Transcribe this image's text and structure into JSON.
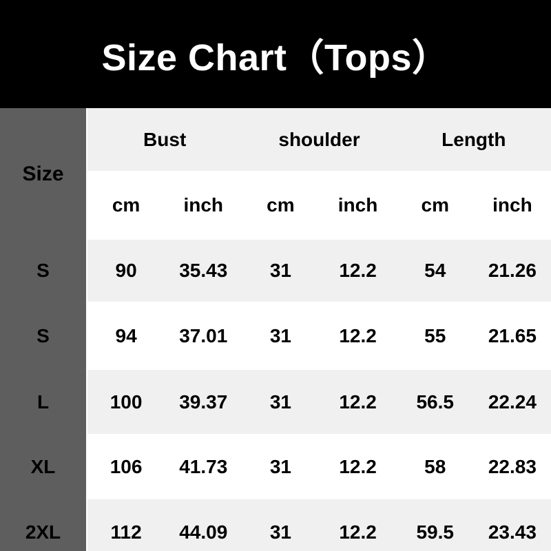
{
  "chart_data": {
    "type": "table",
    "title": "Size Chart（Tops）",
    "corner_label": "Size",
    "column_groups": [
      "Bust",
      "shoulder",
      "Length"
    ],
    "unit_row": [
      "cm",
      "inch",
      "cm",
      "inch",
      "cm",
      "inch"
    ],
    "columns": [
      "Size",
      "Bust cm",
      "Bust inch",
      "shoulder cm",
      "shoulder inch",
      "Length cm",
      "Length inch"
    ],
    "rows": [
      {
        "size": "S",
        "values": [
          "90",
          "35.43",
          "31",
          "12.2",
          "54",
          "21.26"
        ]
      },
      {
        "size": "S",
        "values": [
          "94",
          "37.01",
          "31",
          "12.2",
          "55",
          "21.65"
        ]
      },
      {
        "size": "L",
        "values": [
          "100",
          "39.37",
          "31",
          "12.2",
          "56.5",
          "22.24"
        ]
      },
      {
        "size": "XL",
        "values": [
          "106",
          "41.73",
          "31",
          "12.2",
          "58",
          "22.83"
        ]
      },
      {
        "size": "2XL",
        "values": [
          "112",
          "44.09",
          "31",
          "12.2",
          "59.5",
          "23.43"
        ]
      }
    ],
    "layout": {
      "striped": true,
      "legend_position": "none",
      "grid": false
    }
  },
  "colors": {
    "banner_bg": "#000000",
    "banner_text": "#ffffff",
    "sidebar_bg": "#5e5e5e",
    "row_stripe": "#f0f0f0",
    "row_plain": "#ffffff",
    "table_text": "#000000"
  }
}
